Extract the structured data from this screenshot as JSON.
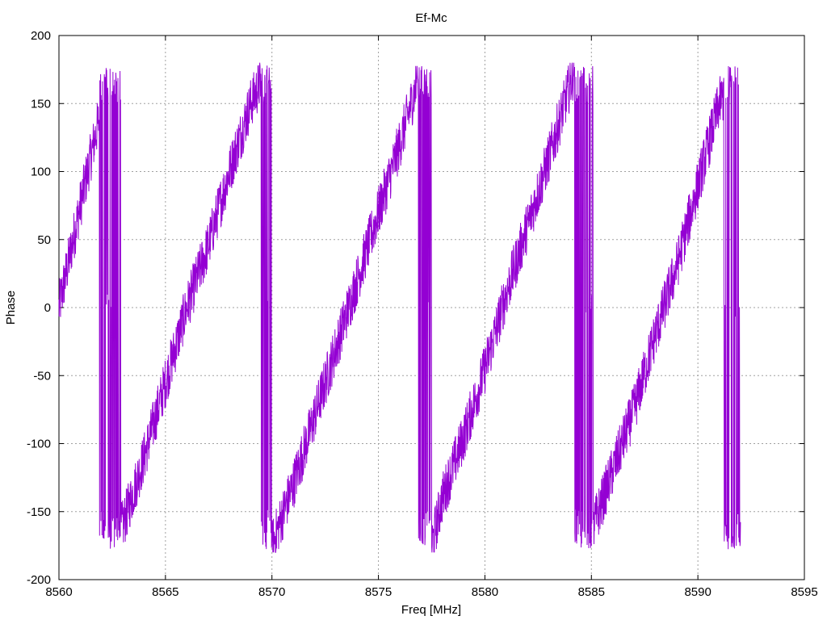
{
  "chart_data": {
    "type": "line",
    "title": "Ef-Mc",
    "xlabel": "Freq [MHz]",
    "ylabel": "Phase",
    "xlim": [
      8560,
      8595
    ],
    "ylim": [
      -200,
      200
    ],
    "xticks": [
      8560,
      8565,
      8570,
      8575,
      8580,
      8585,
      8590,
      8595
    ],
    "yticks": [
      -200,
      -150,
      -100,
      -50,
      0,
      50,
      100,
      150,
      200
    ],
    "grid": true,
    "legend": "none",
    "series": [
      {
        "color": "#9400d3",
        "note_style": "noisy phase-wrapping sawtooth",
        "x_start": 8560,
        "x_end": 8592,
        "wrap_regions": [
          [
            8561.9,
            8562.9
          ],
          [
            8569.5,
            8570.0
          ],
          [
            8576.8,
            8577.5
          ],
          [
            8584.2,
            8585.1
          ],
          [
            8591.2,
            8592.0
          ]
        ],
        "x": [
          8560.0,
          8561.0,
          8561.9,
          8562.2,
          8563.0,
          8564.0,
          8565.0,
          8566.0,
          8567.0,
          8568.0,
          8569.0,
          8569.6,
          8570.0,
          8571.0,
          8572.0,
          8573.0,
          8574.0,
          8575.0,
          8576.0,
          8576.9,
          8577.5,
          8578.0,
          8579.0,
          8580.0,
          8581.0,
          8582.0,
          8583.0,
          8584.2,
          8585.0,
          8586.0,
          8587.0,
          8588.0,
          8589.0,
          8590.0,
          8591.0,
          8591.9
        ],
        "y": [
          0,
          75,
          140,
          -175,
          -160,
          -110,
          -55,
          0,
          45,
          100,
          150,
          170,
          -175,
          -130,
          -80,
          -30,
          20,
          70,
          120,
          170,
          -175,
          -140,
          -95,
          -45,
          10,
          60,
          110,
          175,
          -165,
          -120,
          -75,
          -20,
          30,
          90,
          150,
          175
        ]
      }
    ]
  }
}
